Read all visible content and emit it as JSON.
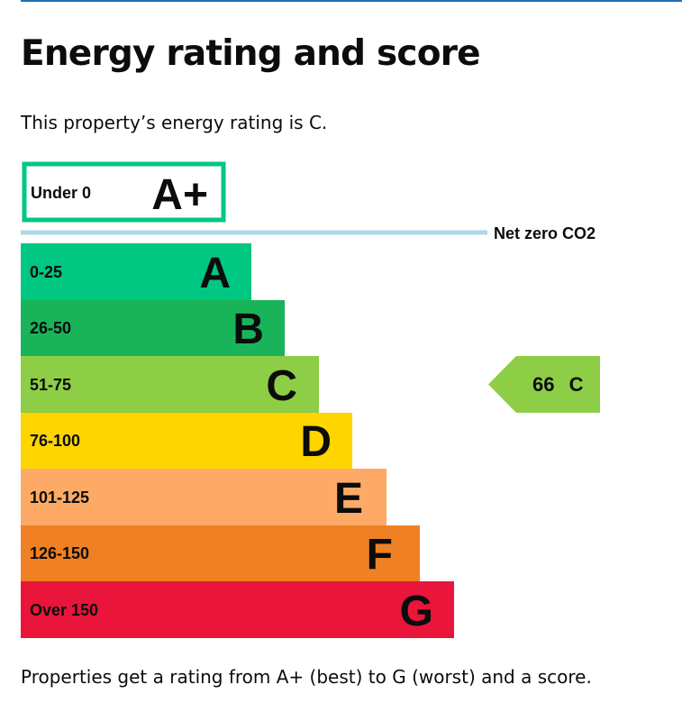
{
  "heading": "Energy rating and score",
  "intro": "This property’s energy rating is C.",
  "footer": "Properties get a rating from A+ (best) to G (worst) and a score.",
  "net_zero_label": "Net zero CO2",
  "chart_data": {
    "type": "bar",
    "title": "Energy rating and score",
    "bands": [
      {
        "range": "Under 0",
        "rating": "A+",
        "color": "#00c781"
      },
      {
        "range": "0-25",
        "rating": "A",
        "color": "#00c781"
      },
      {
        "range": "26-50",
        "rating": "B",
        "color": "#19b459"
      },
      {
        "range": "51-75",
        "rating": "C",
        "color": "#8dce46"
      },
      {
        "range": "76-100",
        "rating": "D",
        "color": "#ffd500"
      },
      {
        "range": "101-125",
        "rating": "E",
        "color": "#fcaa65"
      },
      {
        "range": "126-150",
        "rating": "F",
        "color": "#ef8023"
      },
      {
        "range": "Over 150",
        "rating": "G",
        "color": "#e9153b"
      }
    ],
    "current": {
      "score": "66",
      "rating": "C",
      "color": "#8dce46"
    },
    "net_zero_color": "#add8e6"
  }
}
